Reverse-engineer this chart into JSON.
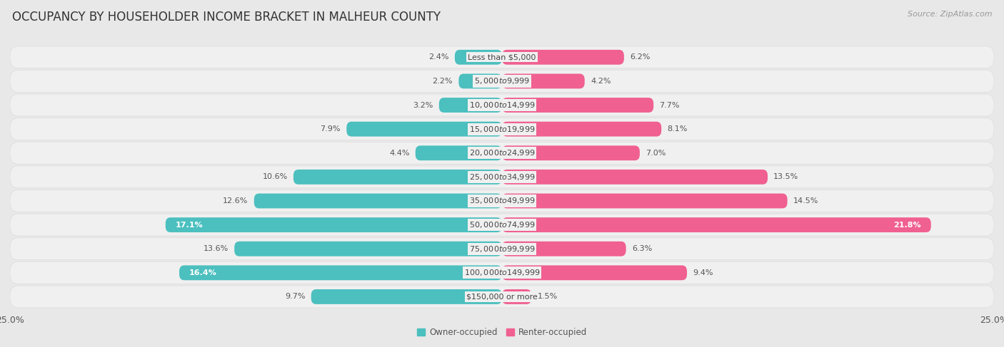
{
  "title": "OCCUPANCY BY HOUSEHOLDER INCOME BRACKET IN MALHEUR COUNTY",
  "source": "Source: ZipAtlas.com",
  "categories": [
    "Less than $5,000",
    "$5,000 to $9,999",
    "$10,000 to $14,999",
    "$15,000 to $19,999",
    "$20,000 to $24,999",
    "$25,000 to $34,999",
    "$35,000 to $49,999",
    "$50,000 to $74,999",
    "$75,000 to $99,999",
    "$100,000 to $149,999",
    "$150,000 or more"
  ],
  "owner_values": [
    2.4,
    2.2,
    3.2,
    7.9,
    4.4,
    10.6,
    12.6,
    17.1,
    13.6,
    16.4,
    9.7
  ],
  "renter_values": [
    6.2,
    4.2,
    7.7,
    8.1,
    7.0,
    13.5,
    14.5,
    21.8,
    6.3,
    9.4,
    1.5
  ],
  "owner_color": "#4CBFBF",
  "renter_color": "#F06090",
  "owner_color_light": "#7DD8D8",
  "renter_color_light": "#F4AABC",
  "background_color": "#e8e8e8",
  "row_bg_color": "#f0f0f0",
  "xlim": 25.0,
  "bar_height": 0.62,
  "title_fontsize": 12,
  "label_fontsize": 8,
  "cat_fontsize": 8,
  "tick_fontsize": 9,
  "source_fontsize": 8
}
